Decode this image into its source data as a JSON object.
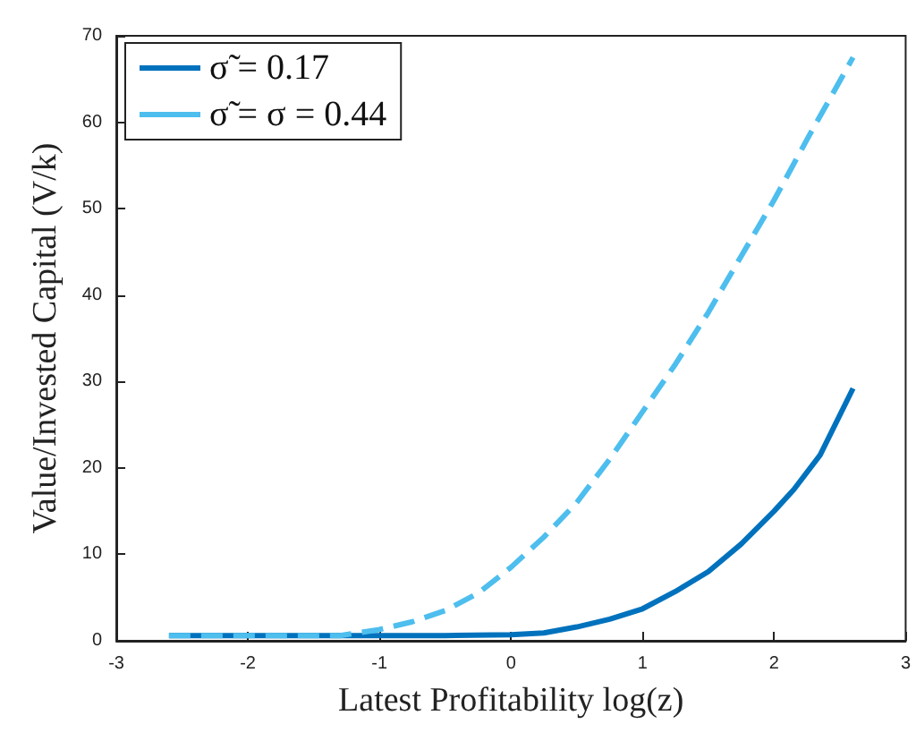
{
  "chart_data": {
    "type": "line",
    "xlabel": "Latest Profitability log(z)",
    "ylabel": "Value/Invested Capital (V/k)",
    "xlim": [
      -3,
      3
    ],
    "xticks": [
      -3,
      -2,
      -1,
      0,
      1,
      2,
      3
    ],
    "ylim": [
      0,
      70
    ],
    "yticks": [
      0,
      10,
      20,
      30,
      40,
      50,
      60,
      70
    ],
    "legend": "top left",
    "grid": false,
    "marker": "none",
    "series": [
      {
        "name": "σ̃ = 0.17",
        "color": "#0072bd",
        "line_style": "solid",
        "x": [
          -2.6,
          -2,
          -1,
          -0.5,
          0,
          0.25,
          0.5,
          0.75,
          1,
          1.25,
          1.5,
          1.75,
          2,
          2.15,
          2.35,
          2.6
        ],
        "values": [
          0.6,
          0.6,
          0.6,
          0.6,
          0.7,
          0.9,
          1.6,
          2.5,
          3.7,
          5.7,
          8,
          11.2,
          15,
          17.5,
          21.5,
          29.2
        ]
      },
      {
        "name": "σ̃ = σ = 0.44",
        "color": "#4dbeee",
        "line_style": "dashed",
        "x": [
          -2.6,
          -2,
          -1.3,
          -1,
          -0.75,
          -0.5,
          -0.25,
          0,
          0.25,
          0.5,
          0.75,
          1,
          1.25,
          1.5,
          1.75,
          2,
          2.25,
          2.6
        ],
        "values": [
          0.6,
          0.6,
          0.6,
          1.3,
          2.2,
          3.5,
          5.5,
          8.5,
          12,
          16,
          21,
          26.5,
          32,
          38,
          44.5,
          51,
          58,
          67.5
        ]
      }
    ]
  }
}
